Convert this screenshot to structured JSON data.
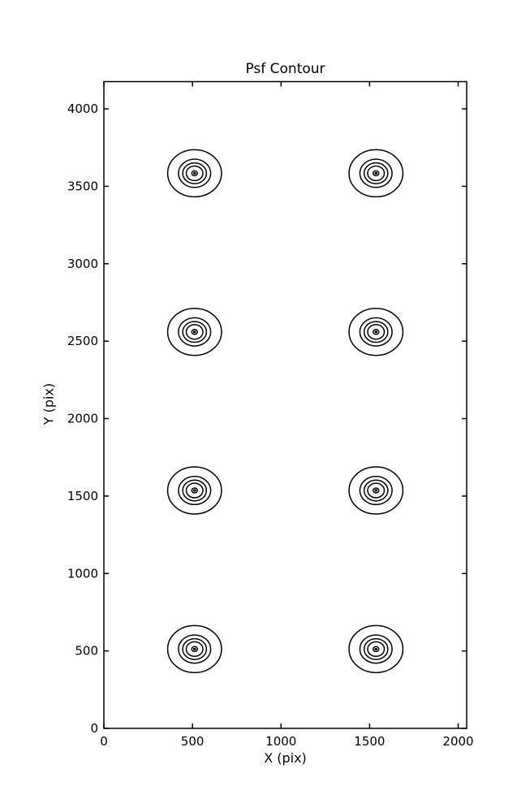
{
  "figure": {
    "background_color": "#ffffff",
    "foreground_color": "#000000"
  },
  "chart_data": {
    "type": "contour",
    "title": "Psf Contour",
    "xlabel": "X (pix)",
    "ylabel": "Y (pix)",
    "xlim": [
      0,
      2048
    ],
    "ylim": [
      0,
      4176
    ],
    "xticks": [
      0,
      500,
      1000,
      1500,
      2000
    ],
    "yticks": [
      0,
      500,
      1000,
      1500,
      2000,
      2500,
      3000,
      3500,
      4000
    ],
    "tick_direction": "in",
    "grid": false,
    "legend": false,
    "line_color": "#000000",
    "background_color": "#ffffff",
    "description": "Eight point-spread-function contour clusters arranged in a 2x4 grid; each cluster is a set of concentric near-circular contour rings around a central peak dot.",
    "psf_centers": [
      {
        "x": 512,
        "y": 512
      },
      {
        "x": 1536,
        "y": 512
      },
      {
        "x": 512,
        "y": 1536
      },
      {
        "x": 1536,
        "y": 1536
      },
      {
        "x": 512,
        "y": 2560
      },
      {
        "x": 1536,
        "y": 2560
      },
      {
        "x": 512,
        "y": 3584
      },
      {
        "x": 1536,
        "y": 3584
      }
    ],
    "contour_radii": [
      152,
      91,
      67,
      47,
      16
    ],
    "center_dot_radius": 6
  }
}
